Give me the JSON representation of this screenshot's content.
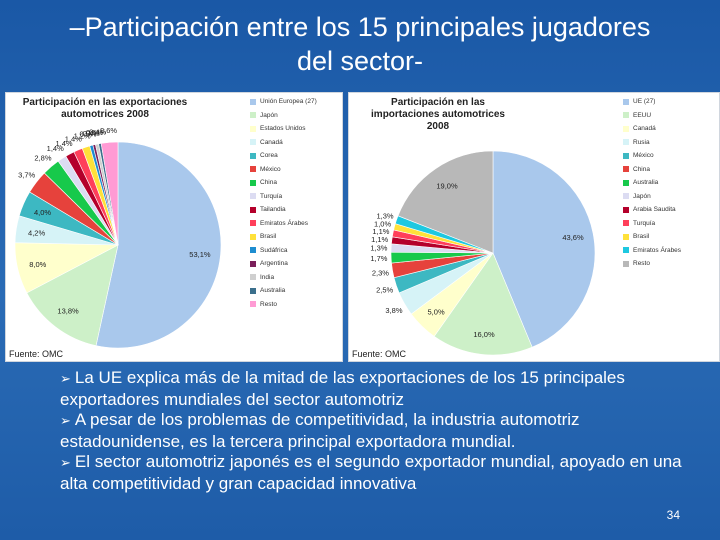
{
  "title": {
    "line1": "–Participación entre los 15 principales jugadores",
    "line2": "del sector-"
  },
  "chart_data": [
    {
      "type": "pie",
      "title": "Participación en las exportaciones automotrices 2008",
      "source": "Fuente: OMC",
      "categories": [
        "Unión Europea (27)",
        "Japón",
        "Estados Unidos",
        "Canadá",
        "Corea",
        "México",
        "China",
        "Turquía",
        "Tailandia",
        "Emiratos Árabes",
        "Brasil",
        "Sudáfrica",
        "Argentina",
        "India",
        "Australia",
        "Resto"
      ],
      "values": [
        53.1,
        13.8,
        8.0,
        4.2,
        4.0,
        3.7,
        2.8,
        1.4,
        1.4,
        1.4,
        1.2,
        0.5,
        0.4,
        0.5,
        0.4,
        2.6
      ],
      "data_labels": [
        "53,1%",
        "13,8%",
        "8,0%",
        "4,2%",
        "4,0%",
        "3,7%",
        "2,8%",
        "1,4%",
        "1,4%",
        "1,4%",
        "1,2%",
        "0,5%",
        "0,4%",
        "0,5%",
        "0,4%",
        "2,6%"
      ],
      "colors": [
        "#a9c8ec",
        "#cdf0c8",
        "#ffffcc",
        "#d6f3f7",
        "#3db8c2",
        "#e6423c",
        "#17c94b",
        "#dcdcf2",
        "#b4002b",
        "#ff3f5a",
        "#ffe13a",
        "#1e8dd0",
        "#7a1f5a",
        "#cfcfcf",
        "#3b6f8c",
        "#ff9bd4"
      ],
      "legend_position": "right"
    },
    {
      "type": "pie",
      "title": "Participación en las importaciones automotrices 2008",
      "source": "Fuente: OMC",
      "categories": [
        "UE (27)",
        "EEUU",
        "Canadá",
        "Rusia",
        "México",
        "China",
        "Australia",
        "Japón",
        "Arabia Saudita",
        "Turquía",
        "Brasil",
        "Emiratos Árabes",
        "Resto"
      ],
      "values": [
        43.6,
        16.0,
        5.0,
        3.8,
        2.5,
        2.3,
        1.7,
        1.3,
        1.1,
        1.1,
        1.0,
        1.3,
        19.0
      ],
      "data_labels": [
        "43,6%",
        "16,0%",
        "5,0%",
        "3,8%",
        "2,5%",
        "2,3%",
        "1,7%",
        "1,3%",
        "1,1%",
        "1,1%",
        "1,0%",
        "1,3%",
        "19,0%"
      ],
      "colors": [
        "#a9c8ec",
        "#cdf0c8",
        "#ffffcc",
        "#d6f3f7",
        "#3db8c2",
        "#e6423c",
        "#17c94b",
        "#dcdcf2",
        "#b4002b",
        "#ff3f5a",
        "#ffe13a",
        "#1ec8e0",
        "#b8b8b8"
      ],
      "legend_position": "right"
    }
  ],
  "bullets": [
    "La UE explica más de la mitad de las exportaciones de los 15 principales exportadores mundiales del sector automotriz",
    "A pesar de los problemas de competitividad, la industria automotriz estadounidense, es la tercera principal exportadora mundial.",
    "El sector automotriz japonés es el segundo exportador mundial, apoyado en una alta competitividad y gran capacidad innovativa"
  ],
  "bullet_icon": "arrow-bullet-icon",
  "page_number": "34"
}
